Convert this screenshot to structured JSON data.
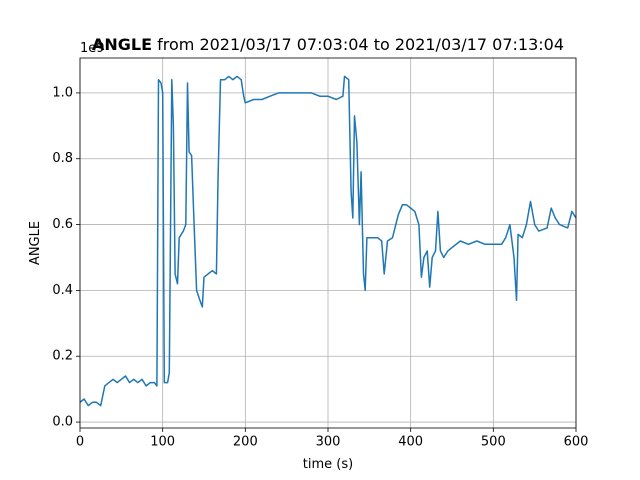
{
  "chart_data": {
    "type": "line",
    "title_parts": [
      "ANGLE",
      " from 2021/03/17 07:03:04 to 2021/03/17 07:13:04"
    ],
    "xlabel": "time (s)",
    "ylabel": "ANGLE",
    "y_offset_text": "1e9",
    "color": "#1f77b4",
    "grid": true,
    "xlim": [
      0,
      600
    ],
    "xticks": [
      0,
      100,
      200,
      300,
      400,
      500,
      600
    ],
    "ylim": [
      -0.018,
      1.106
    ],
    "yticks": [
      {
        "value": 0,
        "label": "0.0"
      },
      0.2,
      0.4,
      0.6,
      0.8,
      {
        "value": 1,
        "label": "1.0"
      }
    ],
    "x": [
      0,
      5,
      10,
      15,
      20,
      25,
      30,
      35,
      40,
      45,
      50,
      55,
      60,
      65,
      70,
      75,
      80,
      85,
      90,
      93,
      95,
      98,
      100,
      102,
      106,
      108,
      111,
      113,
      115,
      118,
      120,
      125,
      128,
      130,
      132,
      135,
      138,
      141,
      145,
      148,
      150,
      155,
      160,
      165,
      167,
      170,
      175,
      180,
      185,
      190,
      195,
      198,
      200,
      210,
      220,
      230,
      240,
      250,
      260,
      270,
      280,
      290,
      300,
      310,
      318,
      320,
      325,
      328,
      330,
      332,
      335,
      338,
      340,
      343,
      345,
      347,
      350,
      360,
      365,
      368,
      372,
      378,
      385,
      390,
      395,
      400,
      405,
      410,
      413,
      416,
      420,
      423,
      426,
      430,
      433,
      436,
      440,
      445,
      450,
      460,
      470,
      480,
      490,
      500,
      510,
      515,
      520,
      525,
      528,
      530,
      535,
      540,
      545,
      550,
      555,
      565,
      570,
      575,
      580,
      590,
      595,
      600
    ],
    "values": [
      0.06,
      0.07,
      0.05,
      0.06,
      0.06,
      0.05,
      0.11,
      0.12,
      0.13,
      0.12,
      0.13,
      0.14,
      0.12,
      0.13,
      0.12,
      0.13,
      0.11,
      0.12,
      0.12,
      0.11,
      1.04,
      1.03,
      1.0,
      0.12,
      0.12,
      0.15,
      1.04,
      0.9,
      0.45,
      0.42,
      0.56,
      0.58,
      0.6,
      1.03,
      0.82,
      0.81,
      0.6,
      0.4,
      0.37,
      0.35,
      0.44,
      0.45,
      0.46,
      0.45,
      0.75,
      1.04,
      1.04,
      1.05,
      1.04,
      1.05,
      1.04,
      0.99,
      0.97,
      0.98,
      0.98,
      0.99,
      1.0,
      1.0,
      1.0,
      1.0,
      1.0,
      0.99,
      0.99,
      0.98,
      0.99,
      1.05,
      1.04,
      0.7,
      0.62,
      0.93,
      0.85,
      0.6,
      0.76,
      0.45,
      0.4,
      0.56,
      0.56,
      0.56,
      0.55,
      0.45,
      0.55,
      0.56,
      0.63,
      0.66,
      0.66,
      0.65,
      0.64,
      0.6,
      0.44,
      0.5,
      0.52,
      0.41,
      0.5,
      0.52,
      0.64,
      0.52,
      0.5,
      0.52,
      0.53,
      0.55,
      0.54,
      0.55,
      0.54,
      0.54,
      0.54,
      0.56,
      0.6,
      0.5,
      0.37,
      0.57,
      0.56,
      0.6,
      0.67,
      0.6,
      0.58,
      0.59,
      0.65,
      0.62,
      0.6,
      0.59,
      0.64,
      0.62
    ]
  }
}
